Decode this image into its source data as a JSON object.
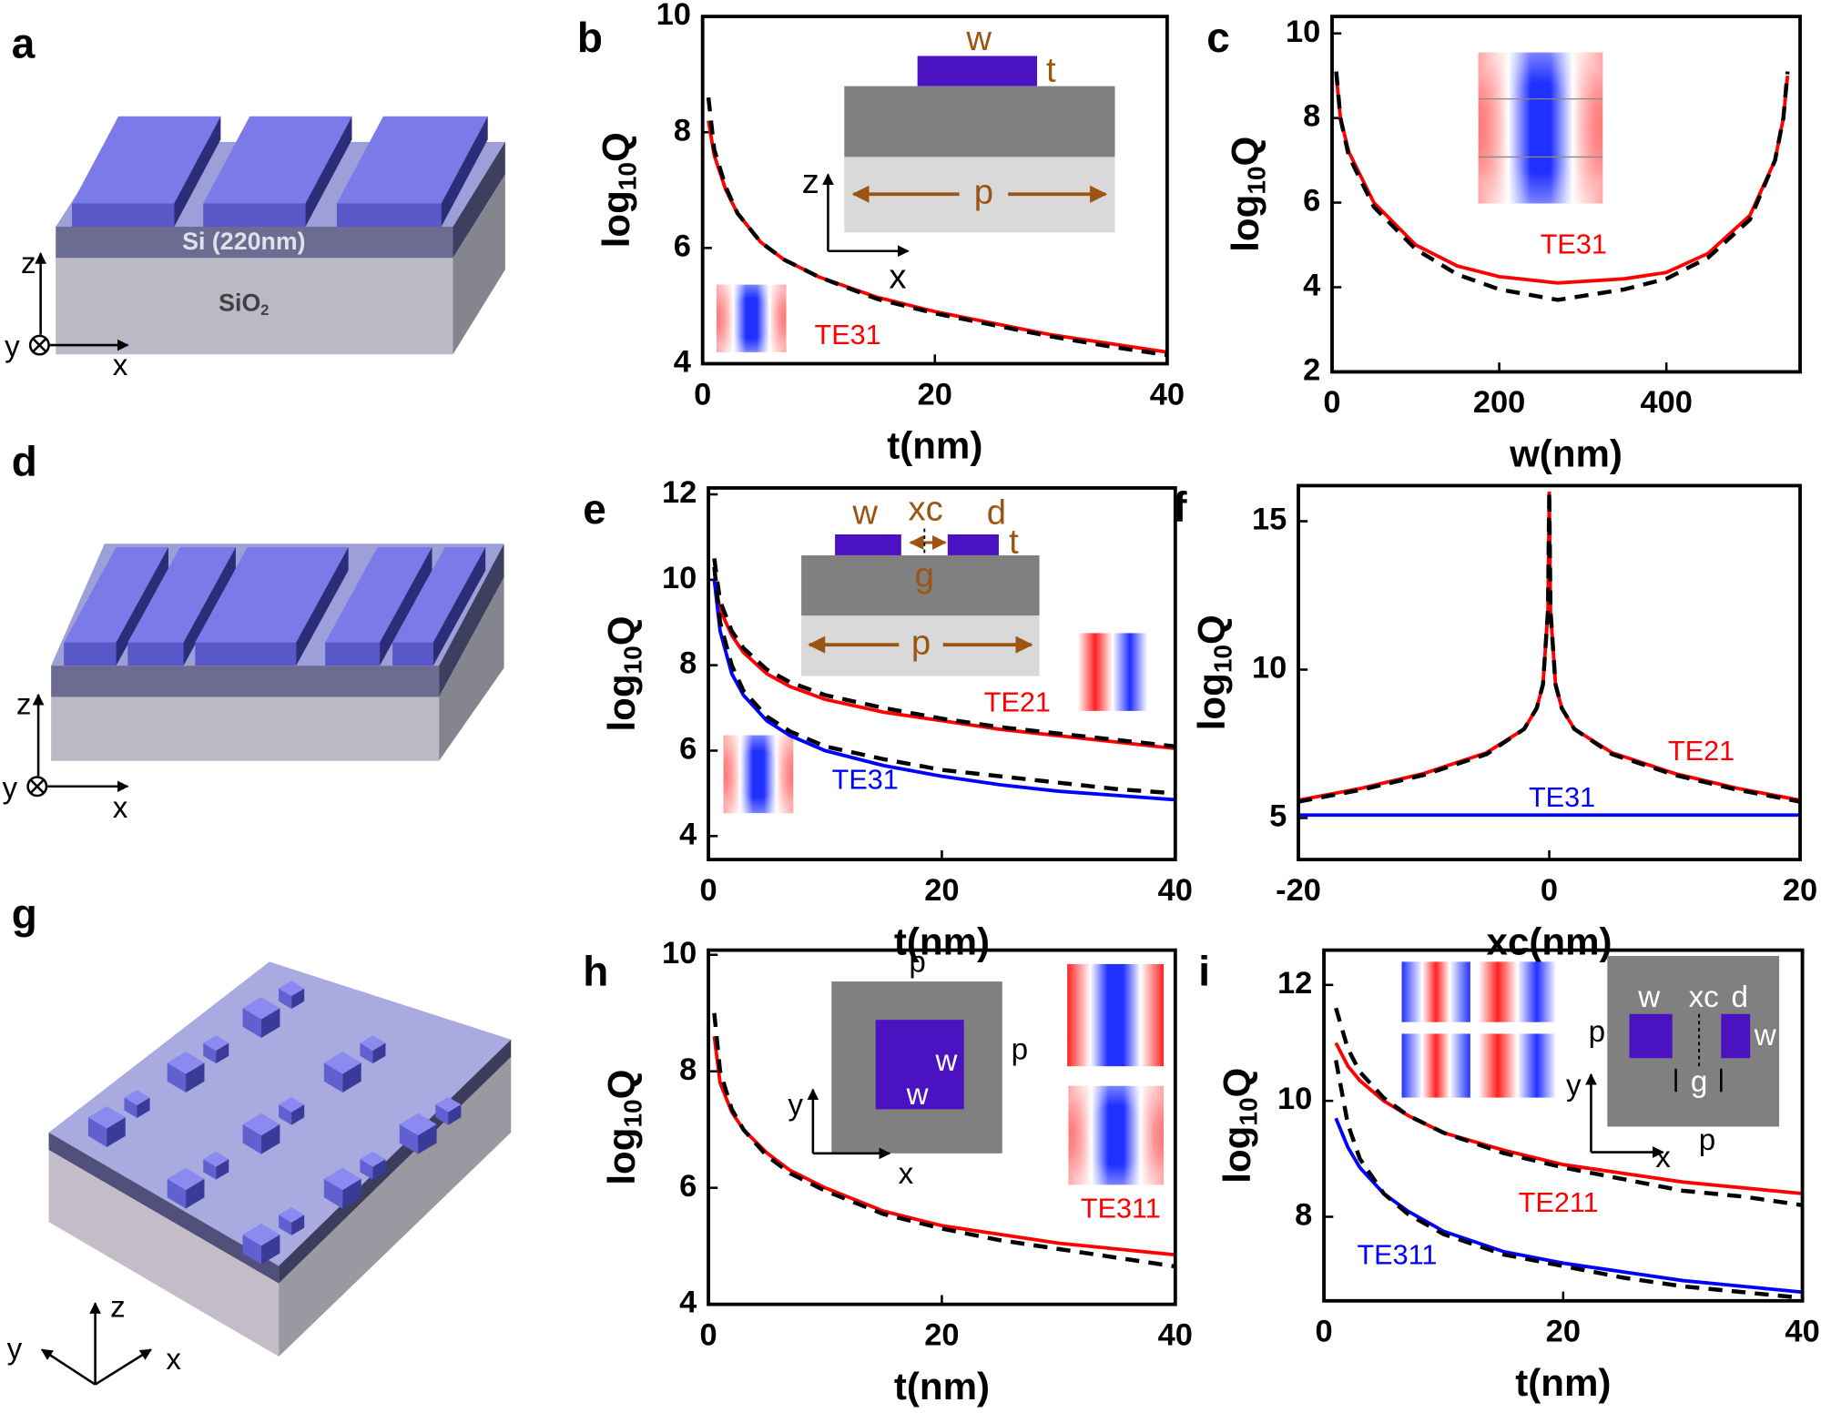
{
  "diagrams": [
    {
      "label": "a",
      "si": "Si (220nm)",
      "sio": "SiO",
      "sio_sub": "2",
      "axes": [
        "z",
        "y",
        "x"
      ]
    },
    {
      "label": "d",
      "axes": [
        "z",
        "y",
        "x"
      ]
    },
    {
      "label": "g",
      "axes": [
        "z",
        "y",
        "x"
      ]
    }
  ],
  "chart_data": [
    {
      "label": "b",
      "type": "line",
      "xlabel": "t(nm)",
      "ylabel": [
        "log",
        "10",
        "Q"
      ],
      "x": [
        0.5,
        1,
        2,
        3,
        5,
        7,
        10,
        15,
        20,
        25,
        30,
        35,
        40
      ],
      "series": [
        {
          "name": "TE31",
          "color": "#ff0000",
          "values": [
            8.2,
            7.6,
            7.0,
            6.6,
            6.1,
            5.8,
            5.5,
            5.15,
            4.9,
            4.7,
            4.5,
            4.35,
            4.2
          ]
        },
        {
          "color": "#000000",
          "dash": true,
          "values": [
            8.6,
            7.7,
            7.05,
            6.6,
            6.1,
            5.8,
            5.5,
            5.12,
            4.87,
            4.67,
            4.47,
            4.3,
            4.15
          ]
        }
      ],
      "xlim": [
        0,
        40
      ],
      "ylim": [
        4,
        10
      ],
      "xticks": [
        0,
        20,
        40
      ],
      "yticks": [
        4,
        6,
        8,
        10
      ],
      "inset_labels": [
        "w",
        "t",
        "z",
        "p",
        "x"
      ]
    },
    {
      "label": "c",
      "type": "line",
      "xlabel": "w(nm)",
      "ylabel": [
        "log",
        "10",
        "Q"
      ],
      "x": [
        5,
        10,
        20,
        50,
        100,
        150,
        200,
        270,
        350,
        400,
        450,
        500,
        530,
        540,
        545
      ],
      "series": [
        {
          "name": "TE31",
          "color": "#ff0000",
          "values": [
            9.0,
            8.0,
            7.2,
            6.0,
            5.0,
            4.5,
            4.25,
            4.1,
            4.2,
            4.35,
            4.8,
            5.7,
            7.0,
            8.0,
            9.0
          ]
        },
        {
          "color": "#000000",
          "dash": true,
          "values": [
            9.1,
            8.0,
            7.1,
            5.9,
            4.9,
            4.3,
            3.95,
            3.7,
            3.95,
            4.2,
            4.7,
            5.6,
            7.0,
            8.0,
            9.1
          ]
        }
      ],
      "xlim": [
        0,
        560
      ],
      "ylim": [
        2,
        10.4
      ],
      "xticks": [
        0,
        200,
        400
      ],
      "yticks": [
        2,
        4,
        6,
        8,
        10
      ]
    },
    {
      "label": "e",
      "type": "line",
      "xlabel": "t(nm)",
      "ylabel": [
        "log",
        "10",
        "Q"
      ],
      "x": [
        0.5,
        1,
        2,
        3,
        5,
        7,
        10,
        15,
        20,
        25,
        30,
        35,
        40
      ],
      "series": [
        {
          "name": "TE21",
          "color": "#ff0000",
          "values": [
            10.0,
            9.3,
            8.7,
            8.3,
            7.8,
            7.5,
            7.2,
            6.9,
            6.7,
            6.5,
            6.35,
            6.2,
            6.05
          ]
        },
        {
          "color": "#000000",
          "dash": true,
          "values": [
            10.5,
            9.5,
            8.8,
            8.4,
            7.9,
            7.6,
            7.3,
            7.0,
            6.75,
            6.55,
            6.4,
            6.25,
            6.1
          ]
        },
        {
          "name": "TE31",
          "color": "#0000ff",
          "values": [
            10.0,
            8.8,
            7.8,
            7.3,
            6.7,
            6.35,
            6.0,
            5.65,
            5.4,
            5.2,
            5.05,
            4.95,
            4.85
          ]
        },
        {
          "color": "#000000",
          "dash": true,
          "values": [
            10.3,
            9.0,
            8.0,
            7.4,
            6.8,
            6.45,
            6.1,
            5.8,
            5.55,
            5.4,
            5.25,
            5.1,
            5.0
          ]
        }
      ],
      "xlim": [
        0,
        40
      ],
      "ylim": [
        3.45,
        12.15
      ],
      "xticks": [
        0,
        20,
        40
      ],
      "yticks": [
        4,
        6,
        8,
        10,
        12
      ],
      "inset_labels": [
        "w",
        "xc",
        "d",
        "t",
        "g",
        "p"
      ]
    },
    {
      "label": "f",
      "type": "line",
      "xlabel": "xc(nm)",
      "ylabel": [
        "log",
        "10",
        "Q"
      ],
      "x": [
        -20,
        -15,
        -10,
        -5,
        -2,
        -1,
        -0.5,
        -0.1,
        0,
        0.1,
        0.5,
        1,
        2,
        5,
        10,
        15,
        20
      ],
      "series": [
        {
          "name": "TE21",
          "color": "#ff0000",
          "values": [
            5.6,
            6.0,
            6.5,
            7.2,
            8.0,
            8.7,
            9.5,
            12,
            16,
            12,
            9.5,
            8.7,
            8.0,
            7.2,
            6.5,
            6.0,
            5.6
          ]
        },
        {
          "color": "#000000",
          "dash": true,
          "values": [
            5.55,
            5.95,
            6.45,
            7.15,
            8.0,
            8.7,
            9.5,
            12,
            16,
            12,
            9.5,
            8.7,
            8.0,
            7.15,
            6.45,
            5.95,
            5.55
          ]
        },
        {
          "name": "TE31",
          "color": "#0000ff",
          "values": [
            5.1,
            5.1,
            5.1,
            5.1,
            5.1,
            5.1,
            5.1,
            5.1,
            5.1,
            5.1,
            5.1,
            5.1,
            5.1,
            5.1,
            5.1,
            5.1,
            5.1
          ]
        }
      ],
      "xlim": [
        -20,
        20
      ],
      "ylim": [
        3.6,
        16.2
      ],
      "xticks": [
        -20,
        0,
        20
      ],
      "yticks": [
        5,
        10,
        15
      ]
    },
    {
      "label": "h",
      "type": "line",
      "xlabel": "t(nm)",
      "ylabel": [
        "log",
        "10",
        "Q"
      ],
      "x": [
        0.5,
        1,
        2,
        3,
        5,
        7,
        10,
        15,
        20,
        25,
        30,
        35,
        40
      ],
      "series": [
        {
          "name": "TE311",
          "color": "#ff0000",
          "values": [
            8.6,
            7.8,
            7.3,
            7.0,
            6.6,
            6.3,
            6.0,
            5.6,
            5.35,
            5.2,
            5.05,
            4.95,
            4.85
          ]
        },
        {
          "color": "#000000",
          "dash": true,
          "values": [
            9.0,
            8.0,
            7.35,
            7.0,
            6.55,
            6.25,
            5.95,
            5.55,
            5.3,
            5.1,
            4.95,
            4.8,
            4.65
          ]
        }
      ],
      "xlim": [
        0,
        40
      ],
      "ylim": [
        4,
        10.08
      ],
      "xticks": [
        0,
        20,
        40
      ],
      "yticks": [
        4,
        6,
        8,
        10
      ],
      "inset_labels": [
        "p",
        "w",
        "w",
        "p",
        "y",
        "x"
      ]
    },
    {
      "label": "i",
      "type": "line",
      "xlabel": "t(nm)",
      "ylabel": [
        "log",
        "10",
        "Q"
      ],
      "x": [
        1,
        2,
        3,
        5,
        7,
        10,
        15,
        20,
        25,
        30,
        35,
        40
      ],
      "series": [
        {
          "name": "TE211",
          "color": "#ff0000",
          "values": [
            11.0,
            10.6,
            10.35,
            10.0,
            9.75,
            9.45,
            9.15,
            8.9,
            8.75,
            8.6,
            8.5,
            8.4
          ]
        },
        {
          "color": "#000000",
          "dash": true,
          "values": [
            11.6,
            10.9,
            10.5,
            10.05,
            9.75,
            9.45,
            9.1,
            8.85,
            8.65,
            8.45,
            8.35,
            8.2
          ]
        },
        {
          "name": "TE311",
          "color": "#0000ff",
          "values": [
            9.7,
            9.2,
            8.85,
            8.4,
            8.1,
            7.75,
            7.4,
            7.2,
            7.05,
            6.9,
            6.8,
            6.7
          ]
        },
        {
          "color": "#000000",
          "dash": true,
          "values": [
            10.7,
            9.6,
            9.0,
            8.4,
            8.05,
            7.7,
            7.35,
            7.15,
            6.95,
            6.8,
            6.7,
            6.6
          ]
        }
      ],
      "xlim": [
        0,
        40
      ],
      "ylim": [
        6.55,
        12.6
      ],
      "xticks": [
        0,
        20,
        40
      ],
      "yticks": [
        8,
        10,
        12
      ],
      "inset_labels": [
        "w",
        "xc",
        "d",
        "w",
        "p",
        "g",
        "y",
        "x",
        "p"
      ]
    }
  ]
}
